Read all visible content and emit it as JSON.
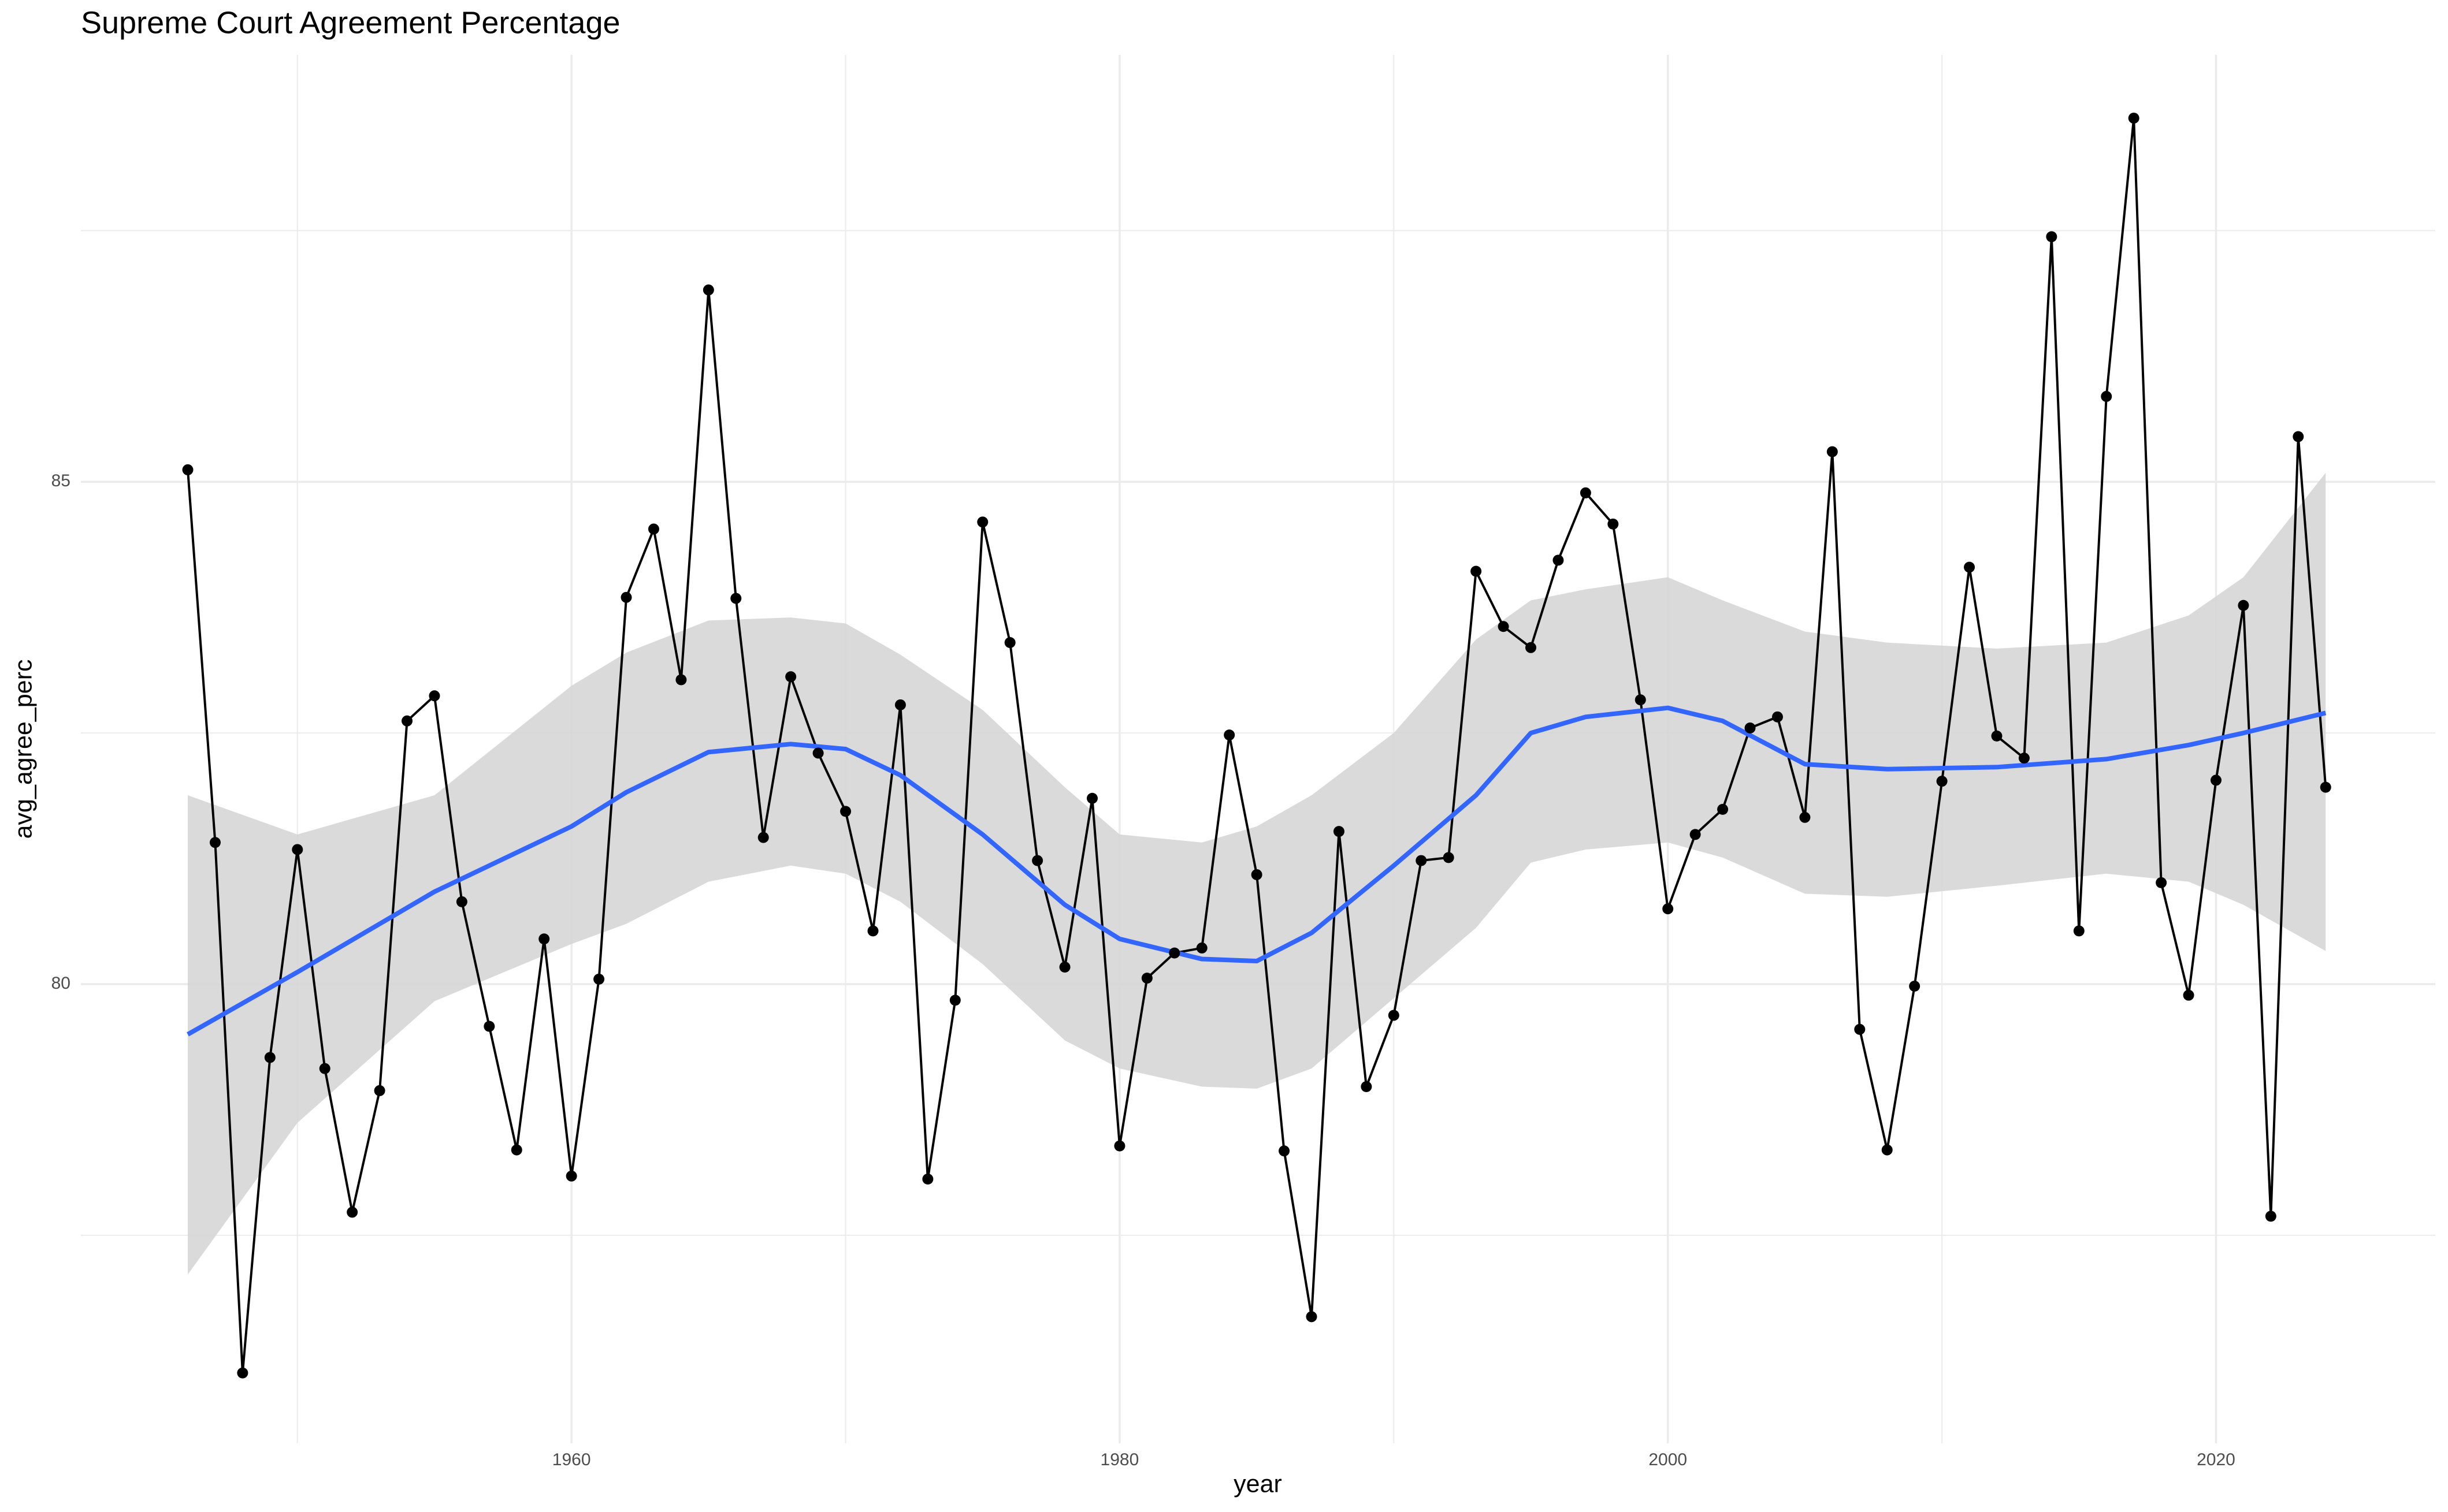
{
  "chart_data": {
    "type": "line",
    "title": "Supreme Court Agreement Percentage",
    "x_label": "year",
    "y_label": "avg_agree_perc",
    "x": [
      1946,
      1947,
      1948,
      1949,
      1950,
      1951,
      1952,
      1953,
      1954,
      1955,
      1956,
      1957,
      1958,
      1959,
      1960,
      1961,
      1962,
      1963,
      1964,
      1965,
      1966,
      1967,
      1968,
      1969,
      1970,
      1971,
      1972,
      1973,
      1974,
      1975,
      1976,
      1977,
      1978,
      1979,
      1980,
      1981,
      1982,
      1983,
      1984,
      1985,
      1986,
      1987,
      1988,
      1989,
      1990,
      1991,
      1992,
      1993,
      1994,
      1995,
      1996,
      1997,
      1998,
      1999,
      2000,
      2001,
      2002,
      2003,
      2004,
      2005,
      2006,
      2007,
      2008,
      2009,
      2010,
      2011,
      2012,
      2013,
      2014,
      2015,
      2016,
      2017,
      2018,
      2019,
      2020,
      2021,
      2022,
      2023,
      2024
    ],
    "series": [
      {
        "color": "#000000",
        "values": [
          85.12,
          81.41,
          76.13,
          79.27,
          81.34,
          79.16,
          77.73,
          78.94,
          82.62,
          82.87,
          80.82,
          79.58,
          78.35,
          80.45,
          78.09,
          80.05,
          83.85,
          84.53,
          83.03,
          86.91,
          83.84,
          81.46,
          83.06,
          82.3,
          81.72,
          80.53,
          82.78,
          78.06,
          79.84,
          84.6,
          83.4,
          81.23,
          80.17,
          81.85,
          78.39,
          80.06,
          80.31,
          80.36,
          82.48,
          81.09,
          78.34,
          76.69,
          81.52,
          78.98,
          79.69,
          81.23,
          81.26,
          84.11,
          83.56,
          83.35,
          84.22,
          84.89,
          84.58,
          82.83,
          80.75,
          81.49,
          81.74,
          82.55,
          82.66,
          81.66,
          85.3,
          79.55,
          78.35,
          79.98,
          82.02,
          84.15,
          82.47,
          82.25,
          87.44,
          80.53,
          85.85,
          88.62,
          81.01,
          79.89,
          82.03,
          83.77,
          77.69,
          85.45,
          81.96
        ]
      }
    ],
    "smooth": {
      "color": "#3366ff",
      "band_color": "#d6d6d6",
      "x": [
        1946,
        1950,
        1955,
        1960,
        1962,
        1965,
        1968,
        1970,
        1972,
        1975,
        1978,
        1980,
        1983,
        1985,
        1987,
        1990,
        1993,
        1995,
        1997,
        2000,
        2002,
        2005,
        2008,
        2012,
        2016,
        2019,
        2021,
        2024
      ],
      "values": [
        79.5,
        80.12,
        80.92,
        81.57,
        81.91,
        82.31,
        82.39,
        82.34,
        82.08,
        81.49,
        80.79,
        80.45,
        80.25,
        80.23,
        80.51,
        81.18,
        81.88,
        82.5,
        82.66,
        82.75,
        82.62,
        82.19,
        82.14,
        82.16,
        82.24,
        82.38,
        82.5,
        82.7
      ],
      "upper": [
        81.88,
        81.49,
        81.88,
        82.97,
        83.3,
        83.62,
        83.65,
        83.59,
        83.28,
        82.73,
        81.96,
        81.49,
        81.41,
        81.57,
        81.88,
        82.5,
        83.43,
        83.82,
        83.93,
        84.05,
        83.82,
        83.51,
        83.4,
        83.34,
        83.4,
        83.67,
        84.05,
        85.09
      ],
      "lower": [
        77.11,
        78.62,
        79.83,
        80.4,
        80.6,
        81.02,
        81.18,
        81.1,
        80.82,
        80.2,
        79.44,
        79.16,
        78.98,
        78.96,
        79.16,
        79.86,
        80.56,
        81.21,
        81.34,
        81.41,
        81.26,
        80.9,
        80.87,
        80.98,
        81.1,
        81.02,
        80.79,
        80.33
      ]
    },
    "xlim": [
      1942.1,
      2028.0
    ],
    "ylim": [
      75.43,
      89.25
    ],
    "xticks": [
      1960,
      1980,
      2000,
      2020
    ],
    "yticks": [
      80,
      85
    ],
    "x_minor_grid": [
      1950,
      1970,
      1990,
      2010
    ],
    "y_minor_grid": [
      77.5,
      82.5,
      87.5
    ],
    "grid": true
  }
}
